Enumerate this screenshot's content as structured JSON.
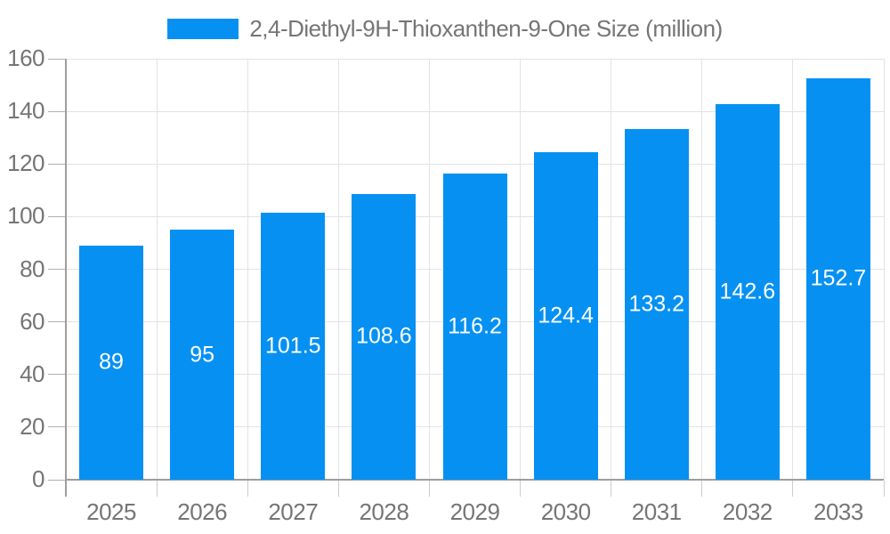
{
  "chart_data": {
    "type": "bar",
    "title": "2,4-Diethyl-9H-Thioxanthen-9-One Size (million)",
    "legend": {
      "position": "top-center",
      "items": [
        {
          "label": "2,4-Diethyl-9H-Thioxanthen-9-One Size (million)",
          "swatch_color": "#0691f2"
        }
      ]
    },
    "categories": [
      "2025",
      "2026",
      "2027",
      "2028",
      "2029",
      "2030",
      "2031",
      "2032",
      "2033"
    ],
    "series": [
      {
        "name": "2,4-Diethyl-9H-Thioxanthen-9-One Size (million)",
        "values": [
          89,
          95,
          101.5,
          108.6,
          116.2,
          124.4,
          133.2,
          142.6,
          152.7
        ],
        "value_labels": [
          "89",
          "95",
          "101.5",
          "108.6",
          "116.2",
          "124.4",
          "133.2",
          "142.6",
          "152.7"
        ]
      }
    ],
    "xlabel": "",
    "ylabel": "",
    "ylim": [
      0,
      160
    ],
    "ytick_step": 20,
    "ytick_labels": [
      "0",
      "20",
      "40",
      "60",
      "80",
      "100",
      "120",
      "140",
      "160"
    ],
    "grid": true,
    "value_label_position": "inside-center",
    "colors": {
      "bar": "#0691f2",
      "axis_text": "#757575",
      "bar_value_text": "#ffffff",
      "axis_line": "#9e9e9e",
      "gridline": "#e3e3e3",
      "y_tick": "#b0b0b0",
      "x_tick": "#cccccc",
      "background": "#ffffff"
    }
  }
}
